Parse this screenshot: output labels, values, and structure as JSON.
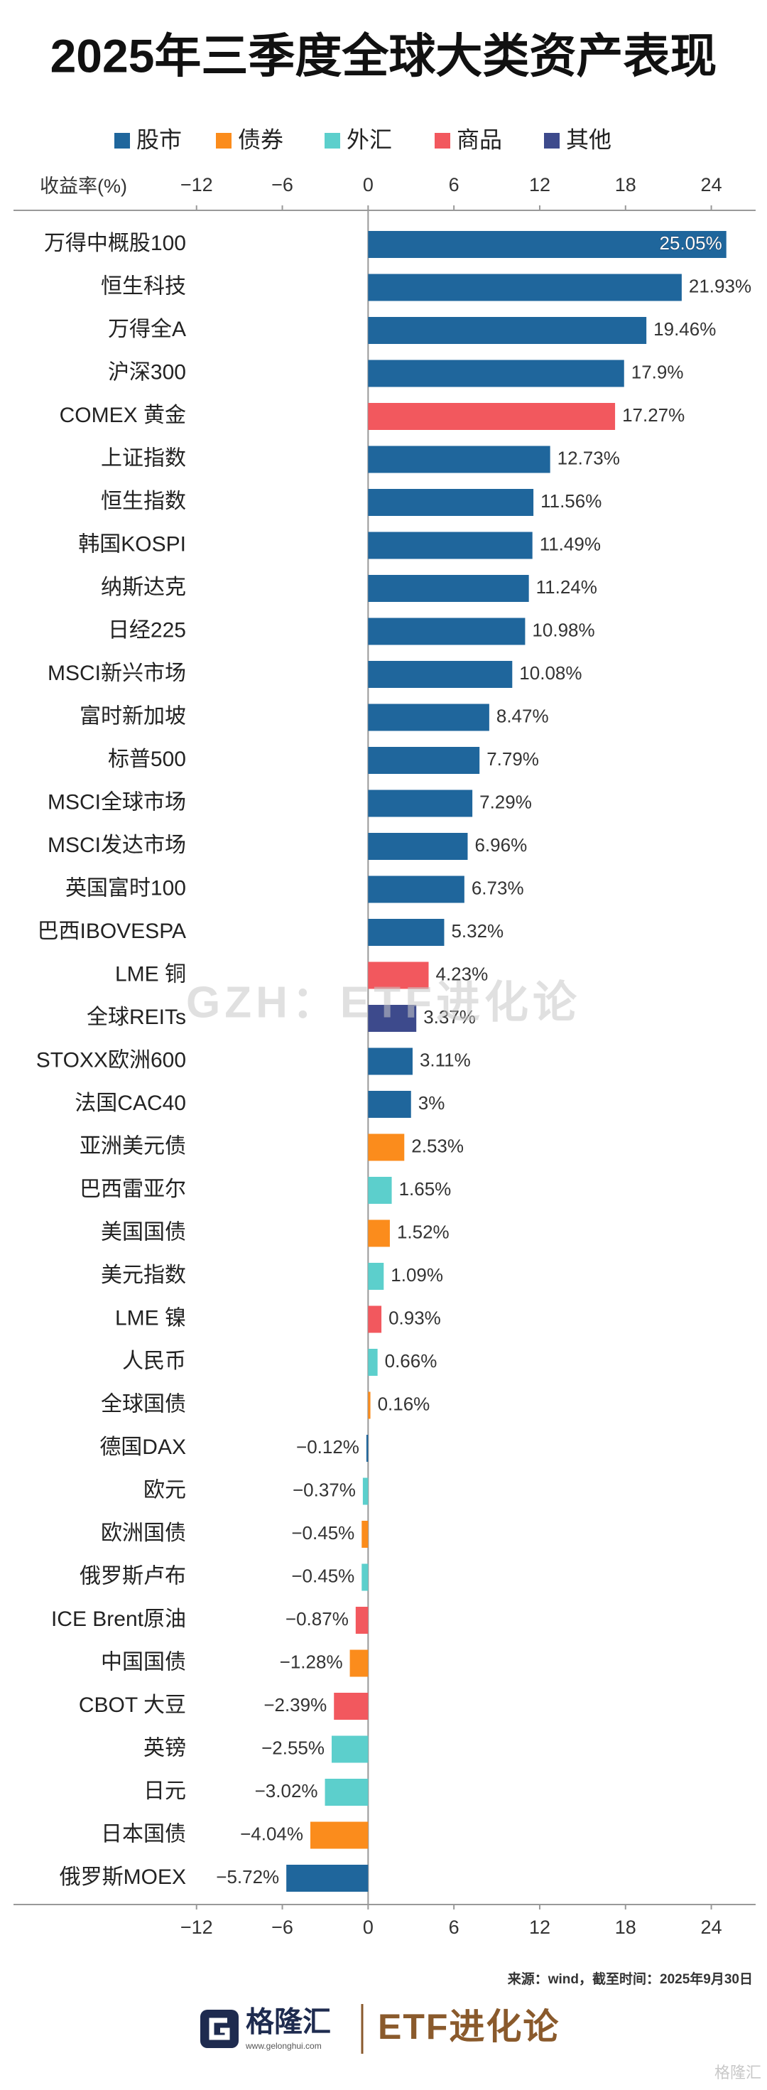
{
  "chart_data": {
    "type": "bar",
    "orientation": "horizontal",
    "title": "2025年三季度全球大类资产表现",
    "axis_label": "收益率(%)",
    "categories": [
      "万得中概股100",
      "恒生科技",
      "万得全A",
      "沪深300",
      "COMEX 黄金",
      "上证指数",
      "恒生指数",
      "韩国KOSPI",
      "纳斯达克",
      "日经225",
      "MSCI新兴市场",
      "富时新加坡",
      "标普500",
      "MSCI全球市场",
      "MSCI发达市场",
      "英国富时100",
      "巴西IBOVESPA",
      "LME 铜",
      "全球REITs",
      "STOXX欧洲600",
      "法国CAC40",
      "亚洲美元债",
      "巴西雷亚尔",
      "美国国债",
      "美元指数",
      "LME 镍",
      "人民币",
      "全球国债",
      "德国DAX",
      "欧元",
      "欧洲国债",
      "俄罗斯卢布",
      "ICE Brent原油",
      "中国国债",
      "CBOT 大豆",
      "英镑",
      "日元",
      "日本国债",
      "俄罗斯MOEX"
    ],
    "series": [
      {
        "name": "股市",
        "color": "#1f669c",
        "values": [
          25.05,
          21.93,
          19.46,
          17.9,
          null,
          12.73,
          11.56,
          11.49,
          11.24,
          10.98,
          10.08,
          8.47,
          7.79,
          7.29,
          6.96,
          6.73,
          5.32,
          null,
          null,
          3.11,
          3,
          null,
          null,
          null,
          null,
          null,
          null,
          null,
          -0.12,
          null,
          null,
          null,
          null,
          null,
          null,
          null,
          null,
          null,
          -5.72
        ],
        "value_labels": [
          "25.05%",
          "21.93%",
          "19.46%",
          "17.9%",
          null,
          "12.73%",
          "11.56%",
          "11.49%",
          "11.24%",
          "10.98%",
          "10.08%",
          "8.47%",
          "7.79%",
          "7.29%",
          "6.96%",
          "6.73%",
          "5.32%",
          null,
          null,
          "3.11%",
          "3%",
          null,
          null,
          null,
          null,
          null,
          null,
          null,
          "−0.12%",
          null,
          null,
          null,
          null,
          null,
          null,
          null,
          null,
          null,
          "−5.72%"
        ]
      },
      {
        "name": "债券",
        "color": "#fb8c1c",
        "values": [
          null,
          null,
          null,
          null,
          null,
          null,
          null,
          null,
          null,
          null,
          null,
          null,
          null,
          null,
          null,
          null,
          null,
          null,
          null,
          null,
          null,
          2.53,
          null,
          1.52,
          null,
          null,
          null,
          0.16,
          null,
          null,
          -0.45,
          null,
          null,
          -1.28,
          null,
          null,
          null,
          -4.04,
          null
        ],
        "value_labels": [
          null,
          null,
          null,
          null,
          null,
          null,
          null,
          null,
          null,
          null,
          null,
          null,
          null,
          null,
          null,
          null,
          null,
          null,
          null,
          null,
          null,
          "2.53%",
          null,
          "1.52%",
          null,
          null,
          null,
          "0.16%",
          null,
          null,
          "−0.45%",
          null,
          null,
          "−1.28%",
          null,
          null,
          null,
          "−4.04%",
          null
        ]
      },
      {
        "name": "外汇",
        "color": "#5ccfcc",
        "values": [
          null,
          null,
          null,
          null,
          null,
          null,
          null,
          null,
          null,
          null,
          null,
          null,
          null,
          null,
          null,
          null,
          null,
          null,
          null,
          null,
          null,
          null,
          1.65,
          null,
          1.09,
          null,
          0.66,
          null,
          null,
          -0.37,
          null,
          -0.45,
          null,
          null,
          null,
          -2.55,
          -3.02,
          null,
          null
        ],
        "value_labels": [
          null,
          null,
          null,
          null,
          null,
          null,
          null,
          null,
          null,
          null,
          null,
          null,
          null,
          null,
          null,
          null,
          null,
          null,
          null,
          null,
          null,
          null,
          "1.65%",
          null,
          "1.09%",
          null,
          "0.66%",
          null,
          null,
          "−0.37%",
          null,
          "−0.45%",
          null,
          null,
          null,
          "−2.55%",
          "−3.02%",
          null,
          null
        ]
      },
      {
        "name": "商品",
        "color": "#f2585e",
        "values": [
          null,
          null,
          null,
          null,
          17.27,
          null,
          null,
          null,
          null,
          null,
          null,
          null,
          null,
          null,
          null,
          null,
          null,
          4.23,
          null,
          null,
          null,
          null,
          null,
          null,
          null,
          0.93,
          null,
          null,
          null,
          null,
          null,
          null,
          -0.87,
          null,
          -2.39,
          null,
          null,
          null,
          null
        ],
        "value_labels": [
          null,
          null,
          null,
          null,
          "17.27%",
          null,
          null,
          null,
          null,
          null,
          null,
          null,
          null,
          null,
          null,
          null,
          null,
          "4.23%",
          null,
          null,
          null,
          null,
          null,
          null,
          null,
          "0.93%",
          null,
          null,
          null,
          null,
          null,
          null,
          "−0.87%",
          null,
          "−2.39%",
          null,
          null,
          null,
          null
        ]
      },
      {
        "name": "其他",
        "color": "#3d4a8c",
        "values": [
          null,
          null,
          null,
          null,
          null,
          null,
          null,
          null,
          null,
          null,
          null,
          null,
          null,
          null,
          null,
          null,
          null,
          null,
          3.37,
          null,
          null,
          null,
          null,
          null,
          null,
          null,
          null,
          null,
          null,
          null,
          null,
          null,
          null,
          null,
          null,
          null,
          null,
          null,
          null
        ],
        "value_labels": [
          null,
          null,
          null,
          null,
          null,
          null,
          null,
          null,
          null,
          null,
          null,
          null,
          null,
          null,
          null,
          null,
          null,
          null,
          "3.37%",
          null,
          null,
          null,
          null,
          null,
          null,
          null,
          null,
          null,
          null,
          null,
          null,
          null,
          null,
          null,
          null,
          null,
          null,
          null,
          null
        ]
      }
    ],
    "xlim": [
      -24.8,
      27.1
    ],
    "xticks": [
      {
        "value": -12,
        "label": "−12"
      },
      {
        "value": -6,
        "label": "−6"
      },
      0,
      6,
      12,
      18,
      24
    ],
    "grid": false,
    "legend": "top",
    "watermark": "GZH：ETF进化论",
    "source": "来源：wind，截至时间：2025年9月30日"
  },
  "footer": {
    "brand": "格隆汇",
    "site": "www.gelonghui.com",
    "account": "ETF进化论",
    "corner": "格隆汇"
  }
}
